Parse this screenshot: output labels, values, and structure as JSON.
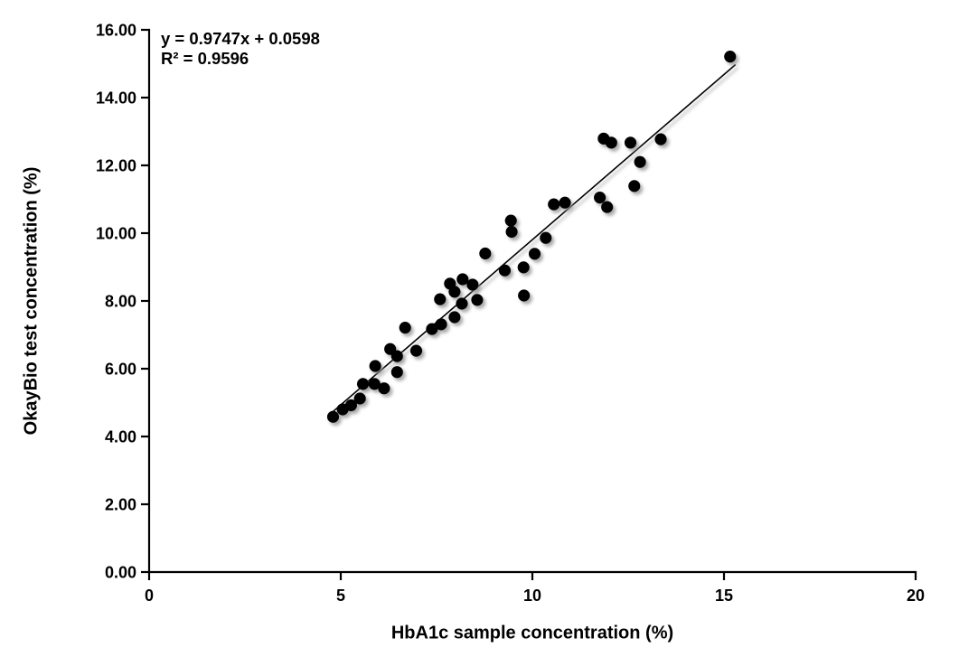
{
  "figure": {
    "background": "#ffffff",
    "annotation": {
      "equation": "y = 0.9747x + 0.0598",
      "r_squared": "R² = 0.9596"
    },
    "x_axis": {
      "label": "HbA1c sample concentration (%)",
      "tick_labels": [
        "0",
        "5",
        "10",
        "15",
        "20"
      ]
    },
    "y_axis": {
      "label": "OkayBio test concentration (%)",
      "tick_labels": [
        "0.00",
        "2.00",
        "4.00",
        "6.00",
        "8.00",
        "10.00",
        "12.00",
        "14.00",
        "16.00"
      ]
    },
    "colors": {
      "marker": "#000000",
      "trendline": "#000000",
      "axis": "#000000",
      "text": "#000000",
      "shadow": "#8f8f8f"
    }
  },
  "chart_data": {
    "type": "scatter",
    "title": "",
    "xlabel": "HbA1c sample concentration (%)",
    "ylabel": "OkayBio test concentration (%)",
    "xlim": [
      0,
      20
    ],
    "ylim": [
      0,
      16
    ],
    "x_ticks": [
      0,
      5,
      10,
      15,
      20
    ],
    "y_ticks": [
      0,
      2,
      4,
      6,
      8,
      10,
      12,
      14,
      16
    ],
    "grid": false,
    "legend": false,
    "marker": {
      "shape": "circle",
      "color": "#000000",
      "radius_px": 6.6,
      "shadow": true
    },
    "points": [
      [
        4.8,
        4.58
      ],
      [
        5.05,
        4.8
      ],
      [
        5.27,
        4.92
      ],
      [
        5.5,
        5.12
      ],
      [
        5.58,
        5.55
      ],
      [
        5.88,
        5.55
      ],
      [
        6.13,
        5.42
      ],
      [
        5.9,
        6.08
      ],
      [
        6.47,
        5.9
      ],
      [
        6.29,
        6.58
      ],
      [
        6.47,
        6.37
      ],
      [
        6.97,
        6.53
      ],
      [
        6.68,
        7.21
      ],
      [
        7.38,
        7.17
      ],
      [
        7.62,
        7.31
      ],
      [
        7.59,
        8.05
      ],
      [
        7.97,
        7.52
      ],
      [
        8.16,
        7.92
      ],
      [
        7.97,
        8.27
      ],
      [
        7.85,
        8.51
      ],
      [
        8.18,
        8.64
      ],
      [
        8.44,
        8.48
      ],
      [
        8.56,
        8.03
      ],
      [
        8.77,
        9.4
      ],
      [
        9.28,
        8.9
      ],
      [
        9.77,
        8.99
      ],
      [
        9.78,
        8.16
      ],
      [
        9.44,
        10.37
      ],
      [
        9.46,
        10.04
      ],
      [
        10.06,
        9.39
      ],
      [
        10.35,
        9.86
      ],
      [
        10.56,
        10.85
      ],
      [
        10.85,
        10.9
      ],
      [
        11.76,
        11.05
      ],
      [
        11.95,
        10.77
      ],
      [
        11.86,
        12.79
      ],
      [
        12.06,
        12.67
      ],
      [
        12.56,
        12.67
      ],
      [
        13.35,
        12.77
      ],
      [
        12.81,
        12.1
      ],
      [
        12.66,
        11.39
      ],
      [
        15.16,
        15.21
      ]
    ],
    "trendline": {
      "type": "linear",
      "slope": 0.9747,
      "intercept": 0.0598,
      "r2": 0.9596,
      "x_start": 4.8,
      "x_end": 15.3
    },
    "annotations": [
      "y = 0.9747x + 0.0598",
      "R² = 0.9596"
    ]
  }
}
